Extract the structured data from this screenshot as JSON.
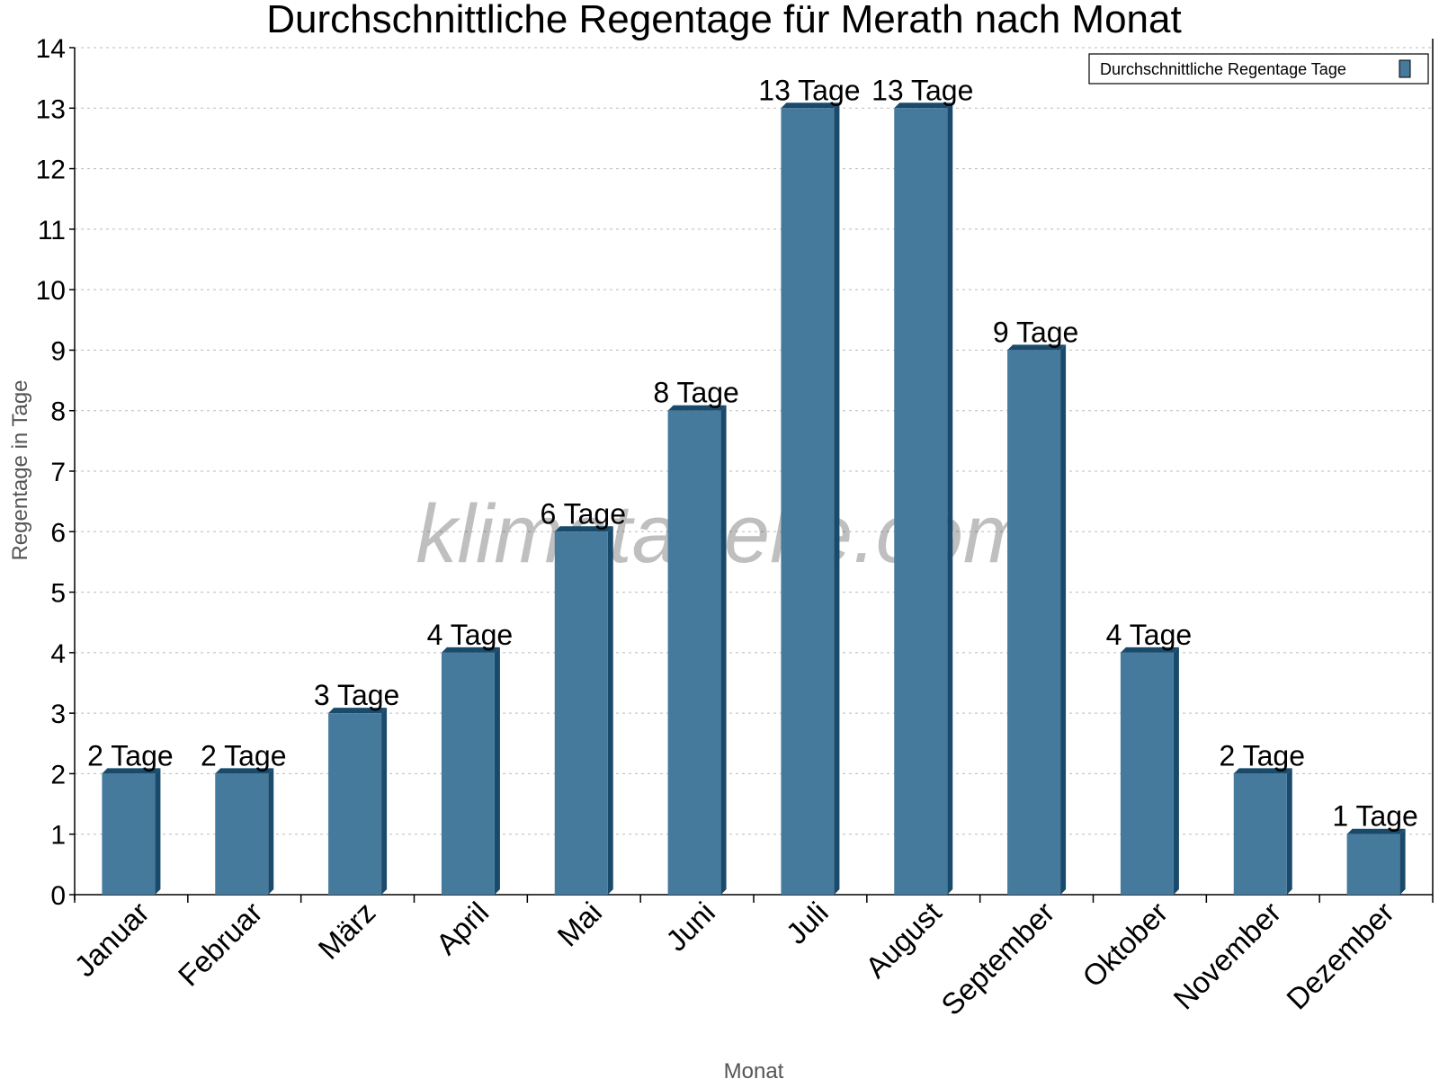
{
  "chart_data": {
    "type": "bar",
    "title": "Durchschnittliche Regentage für Merath nach Monat",
    "xlabel": "Monat",
    "ylabel": "Regentage in Tage",
    "categories": [
      "Januar",
      "Februar",
      "März",
      "April",
      "Mai",
      "Juni",
      "Juli",
      "August",
      "September",
      "Oktober",
      "November",
      "Dezember"
    ],
    "series": [
      {
        "name": "Durchschnittliche Regentage Tage",
        "values": [
          2,
          2,
          3,
          4,
          6,
          8,
          13,
          13,
          9,
          4,
          2,
          1
        ],
        "data_labels": [
          "2 Tage",
          "2 Tage",
          "3 Tage",
          "4 Tage",
          "6 Tage",
          "8 Tage",
          "13 Tage",
          "13 Tage",
          "9 Tage",
          "4 Tage",
          "2 Tage",
          "1 Tage"
        ]
      }
    ],
    "ylim": [
      0,
      14
    ],
    "yticks": [
      0,
      1,
      2,
      3,
      4,
      5,
      6,
      7,
      8,
      9,
      10,
      11,
      12,
      13,
      14
    ],
    "grid": true,
    "legend_position": "top-right",
    "colors": {
      "bar": "#467a9c",
      "bar_side": "#1a4a6b"
    },
    "watermark": "klimatabelle.com"
  }
}
